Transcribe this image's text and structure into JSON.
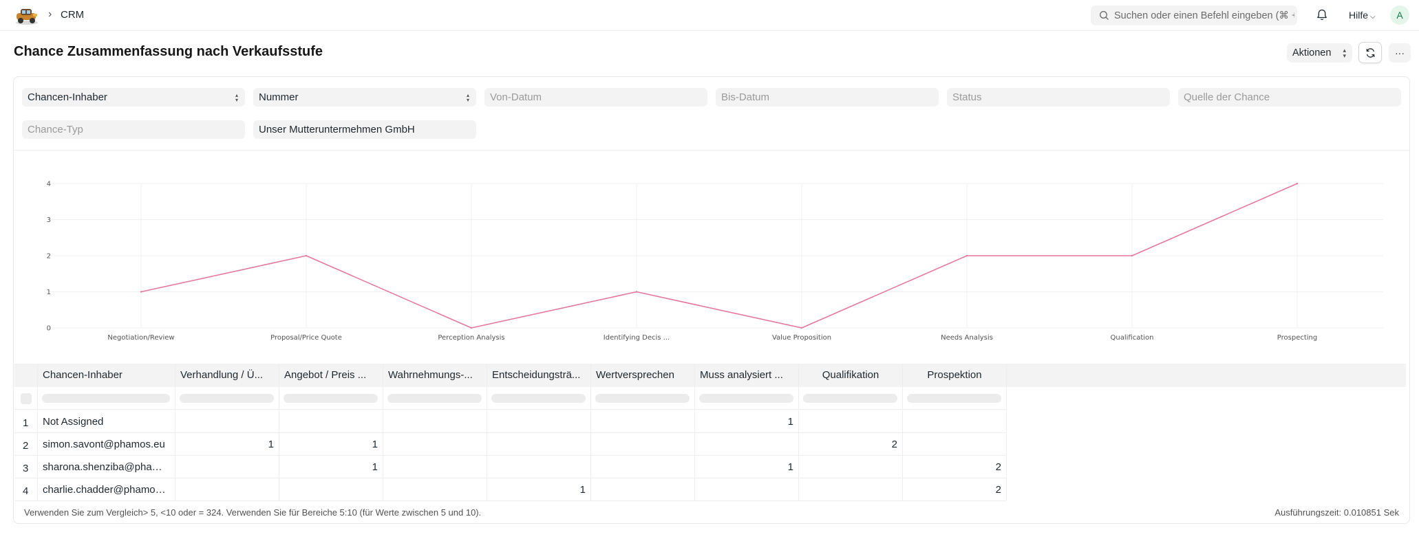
{
  "navbar": {
    "breadcrumb": "CRM",
    "search_placeholder": "Suchen oder einen Befehl eingeben (⌘ + G)",
    "help_label": "Hilfe",
    "avatar_initial": "A"
  },
  "page": {
    "title": "Chance Zusammenfassung nach Verkaufsstufe",
    "actions_label": "Aktionen",
    "more_label": "···"
  },
  "filters": {
    "owner_select": "Chancen-Inhaber",
    "number_select": "Nummer",
    "from_date_placeholder": "Von-Datum",
    "to_date_placeholder": "Bis-Datum",
    "status_placeholder": "Status",
    "source_placeholder": "Quelle der Chance",
    "type_placeholder": "Chance-Typ",
    "company_value": "Unser Mutteruntermehmen GmbH"
  },
  "chart_data": {
    "type": "line",
    "categories": [
      "Negotiation/Review",
      "Proposal/Price Quote",
      "Perception Analysis",
      "Identifying Decis ...",
      "Value Proposition",
      "Needs Analysis",
      "Qualification",
      "Prospecting"
    ],
    "values": [
      1,
      2,
      0,
      1,
      0,
      2,
      2,
      4
    ],
    "y_ticks": [
      "0",
      "1",
      "2",
      "3",
      "4"
    ],
    "ylim": [
      0,
      4
    ],
    "grid": true,
    "line_color": "#e5779c"
  },
  "table": {
    "columns": [
      "Chancen-Inhaber",
      "Verhandlung / Ü...",
      "Angebot / Preis ...",
      "Wahrnehmungs-...",
      "Entscheidungsträ...",
      "Wertversprechen",
      "Muss analysiert ...",
      "Qualifikation",
      "Prospektion"
    ],
    "rows": [
      {
        "index": "1",
        "cells": [
          "Not Assigned",
          "",
          "",
          "",
          "",
          "",
          "1",
          "",
          ""
        ]
      },
      {
        "index": "2",
        "cells": [
          "simon.savont@phamos.eu",
          "1",
          "1",
          "",
          "",
          "",
          "",
          "2",
          ""
        ]
      },
      {
        "index": "3",
        "cells": [
          "sharona.shenziba@phamo...",
          "",
          "1",
          "",
          "",
          "",
          "1",
          "",
          "2"
        ]
      },
      {
        "index": "4",
        "cells": [
          "charlie.chadder@phamos....",
          "",
          "",
          "",
          "1",
          "",
          "",
          "",
          "2"
        ]
      }
    ]
  },
  "footer": {
    "note": "Verwenden Sie zum Vergleich> 5, <10 oder = 324. Verwenden Sie für Bereiche 5:10 (für Werte zwischen 5 und 10).",
    "exec_time": "Ausführungszeit: 0.010851 Sek"
  }
}
